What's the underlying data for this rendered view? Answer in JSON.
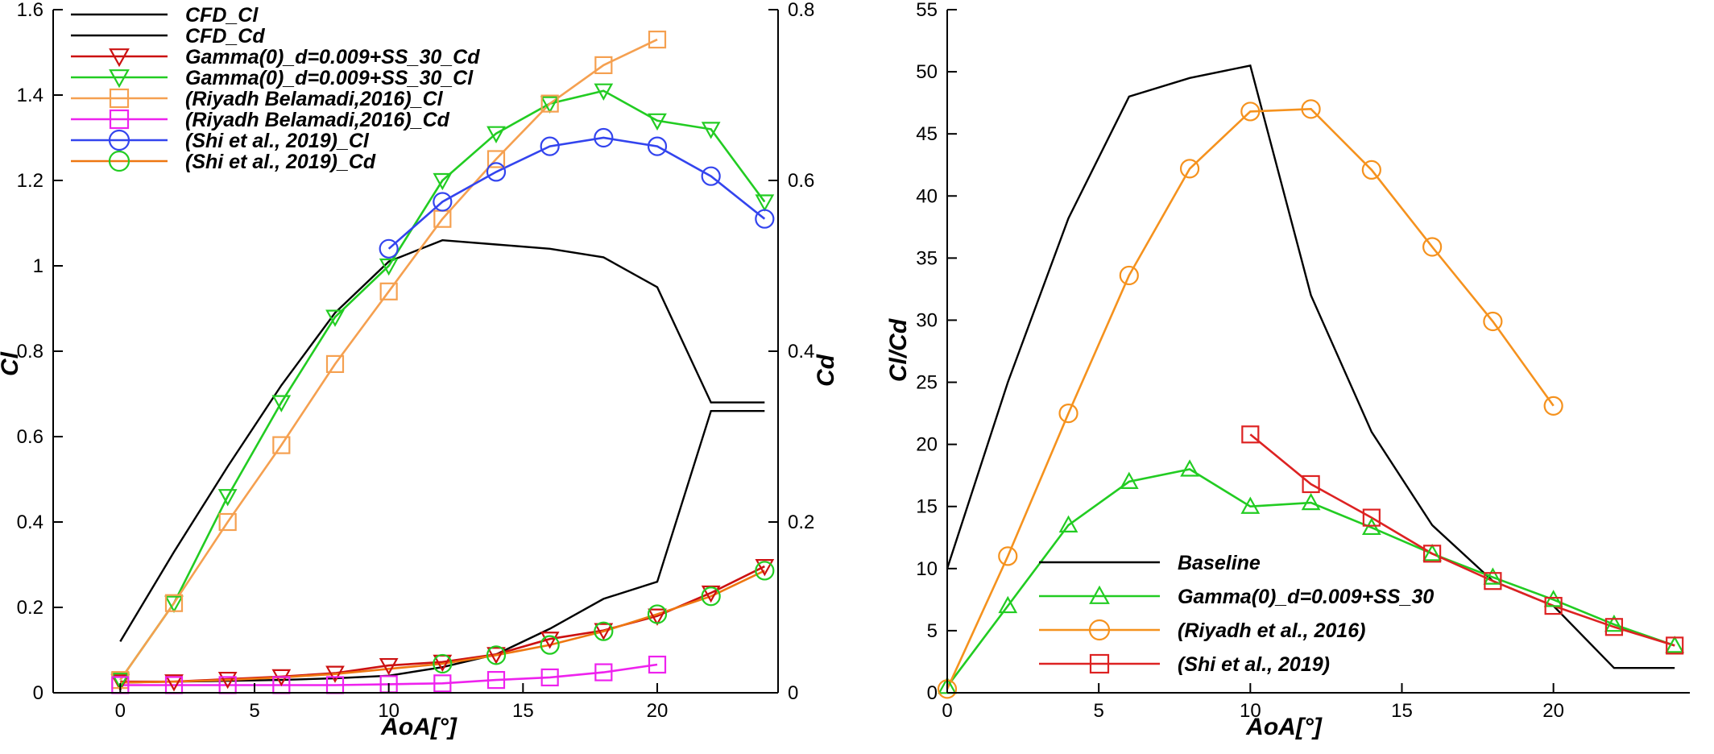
{
  "chart_data": [
    {
      "type": "line",
      "xlabel": "AoA[°]",
      "ylabel": "Cl",
      "y2label": "Cd",
      "xlim": [
        -2.5,
        24.5
      ],
      "xticks": [
        0,
        5,
        10,
        15,
        20
      ],
      "ylim": [
        0,
        1.6
      ],
      "yticks": [
        0,
        0.2,
        0.4,
        0.6,
        0.8,
        1,
        1.2,
        1.4,
        1.6
      ],
      "y2lim": [
        0,
        0.8
      ],
      "y2ticks": [
        0,
        0.2,
        0.4,
        0.6,
        0.8
      ],
      "grid": false,
      "legend_position": "top-left",
      "series": [
        {
          "name": "CFD_Cl",
          "axis": "left",
          "color": "#000000",
          "marker": "none",
          "x": [
            0,
            2,
            4,
            6,
            8,
            10,
            12,
            14,
            16,
            18,
            20,
            22,
            24
          ],
          "y": [
            0.12,
            0.33,
            0.53,
            0.72,
            0.89,
            1.01,
            1.06,
            1.05,
            1.04,
            1.02,
            0.95,
            0.68,
            0.68
          ]
        },
        {
          "name": "CFD_Cd",
          "axis": "right",
          "color": "#000000",
          "marker": "none",
          "x": [
            0,
            2,
            4,
            6,
            8,
            10,
            12,
            14,
            16,
            18,
            20,
            22,
            24
          ],
          "y": [
            0.012,
            0.013,
            0.014,
            0.015,
            0.017,
            0.02,
            0.03,
            0.045,
            0.075,
            0.11,
            0.13,
            0.33,
            0.33
          ]
        },
        {
          "name": "Gamma(0)_d=0.009+SS_30_Cd",
          "axis": "right",
          "color": "#cc1111",
          "marker": "triangle-down",
          "x": [
            0,
            2,
            4,
            6,
            8,
            10,
            12,
            14,
            16,
            18,
            20,
            22,
            24
          ],
          "y": [
            0.013,
            0.013,
            0.016,
            0.019,
            0.023,
            0.032,
            0.036,
            0.045,
            0.063,
            0.073,
            0.09,
            0.117,
            0.148
          ]
        },
        {
          "name": "Gamma(0)_d=0.009+SS_30_Cl",
          "axis": "left",
          "color": "#22cc22",
          "marker": "triangle-down",
          "x": [
            0,
            2,
            4,
            6,
            8,
            10,
            12,
            14,
            16,
            18,
            20,
            22,
            24
          ],
          "y": [
            0.03,
            0.21,
            0.46,
            0.68,
            0.88,
            1.0,
            1.2,
            1.31,
            1.38,
            1.41,
            1.34,
            1.32,
            1.15
          ]
        },
        {
          "name": "(Riyadh Belamadi,2016)_Cl",
          "axis": "left",
          "color": "#f5a050",
          "marker": "square",
          "x": [
            0,
            2,
            4,
            6,
            8,
            10,
            12,
            14,
            16,
            18,
            20
          ],
          "y": [
            0.03,
            0.21,
            0.4,
            0.58,
            0.77,
            0.94,
            1.11,
            1.25,
            1.38,
            1.47,
            1.53
          ]
        },
        {
          "name": "(Riyadh Belamadi,2016)_Cd",
          "axis": "right",
          "color": "#ee22ee",
          "marker": "square",
          "x": [
            0,
            2,
            4,
            6,
            8,
            10,
            12,
            14,
            16,
            18,
            20
          ],
          "y": [
            0.009,
            0.009,
            0.009,
            0.009,
            0.009,
            0.01,
            0.011,
            0.015,
            0.018,
            0.024,
            0.033
          ]
        },
        {
          "name": "(Shi et al., 2019)_Cl",
          "axis": "left",
          "color": "#3344ee",
          "marker": "circle",
          "x": [
            10,
            12,
            14,
            16,
            18,
            20,
            22,
            24
          ],
          "y": [
            1.04,
            1.15,
            1.22,
            1.28,
            1.3,
            1.28,
            1.21,
            1.11
          ]
        },
        {
          "name": "(Shi et al., 2019)_Cd",
          "axis": "right",
          "color": "#ee7711",
          "marker": "circle",
          "x": [
            0,
            2,
            4,
            6,
            8,
            10,
            12,
            14,
            16,
            18,
            20,
            22,
            24
          ],
          "y": [
            0.012,
            0.013,
            0.015,
            0.018,
            0.022,
            0.028,
            0.034,
            0.044,
            0.056,
            0.072,
            0.092,
            0.113,
            0.143
          ],
          "marker_color": "#22cc22",
          "marker_x": [
            12,
            14,
            16,
            18,
            20,
            22,
            24
          ]
        }
      ]
    },
    {
      "type": "line",
      "xlabel": "AoA[°]",
      "ylabel": "Cl/Cd",
      "xlim": [
        0,
        24.5
      ],
      "xticks": [
        0,
        5,
        10,
        15,
        20
      ],
      "ylim": [
        0,
        55
      ],
      "yticks": [
        0,
        5,
        10,
        15,
        20,
        25,
        30,
        35,
        40,
        45,
        50,
        55
      ],
      "grid": false,
      "legend_position": "bottom-center",
      "series": [
        {
          "name": "Baseline",
          "color": "#000000",
          "marker": "none",
          "x": [
            0,
            2,
            4,
            6,
            8,
            10,
            12,
            14,
            16,
            18,
            20,
            22,
            24
          ],
          "y": [
            10,
            25,
            38.2,
            48,
            49.5,
            50.5,
            32,
            21,
            13.5,
            9,
            7,
            2,
            2
          ]
        },
        {
          "name": "Gamma(0)_d=0.009+SS_30",
          "color": "#22cc22",
          "marker": "triangle-up",
          "x": [
            0,
            2,
            4,
            6,
            8,
            10,
            12,
            14,
            16,
            18,
            20,
            22,
            24
          ],
          "y": [
            0.5,
            7,
            13.5,
            17,
            18,
            15,
            15.3,
            13.3,
            11.2,
            9.3,
            7.5,
            5.5,
            3.8
          ]
        },
        {
          "name": "(Riyadh et al., 2016)",
          "color": "#f5921e",
          "marker": "circle",
          "x": [
            0,
            2,
            4,
            6,
            8,
            10,
            12,
            14,
            16,
            18,
            20
          ],
          "y": [
            0.3,
            11,
            22.5,
            33.6,
            42.2,
            46.8,
            47,
            42.1,
            35.9,
            29.9,
            23.1
          ]
        },
        {
          "name": "(Shi et al., 2019)",
          "color": "#dd2222",
          "marker": "square",
          "x": [
            10,
            12,
            14,
            16,
            18,
            20,
            22,
            24
          ],
          "y": [
            20.8,
            16.8,
            14.1,
            11.2,
            9,
            7,
            5.3,
            3.8
          ]
        }
      ]
    }
  ]
}
